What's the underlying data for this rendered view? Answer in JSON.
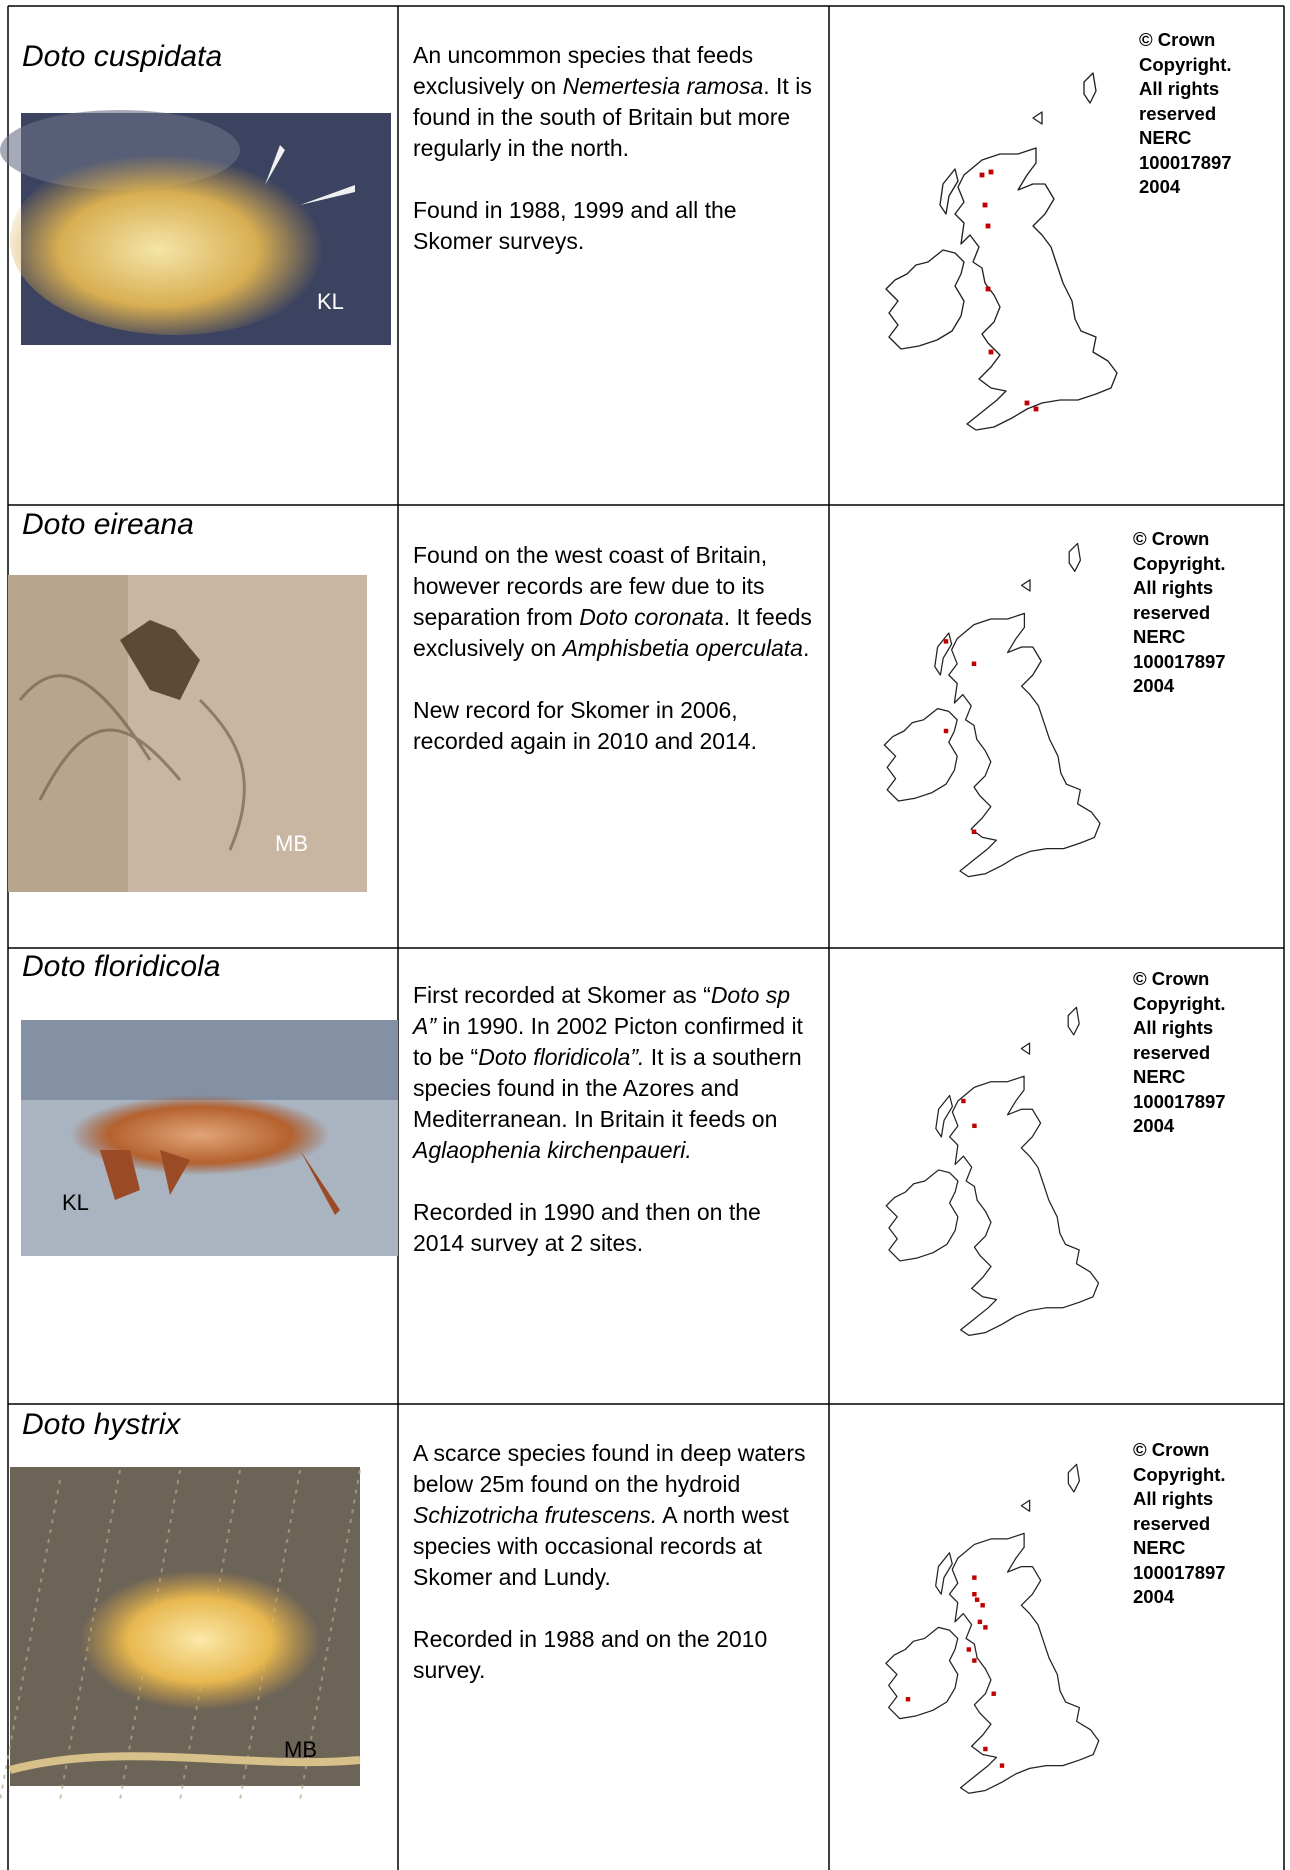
{
  "rows": [
    {
      "species": "Doto cuspidata",
      "photo_credit": "KL",
      "description": [
        [
          {
            "text": "An uncommon species that feeds exclusively on ",
            "italic": false
          },
          {
            "text": "Nemertesia ramosa",
            "italic": true
          },
          {
            "text": ".  It is found in the south of Britain but more regularly in the north.",
            "italic": false
          }
        ],
        [
          {
            "text": "Found in 1988, 1999 and all the Skomer surveys.",
            "italic": false
          }
        ]
      ],
      "copyright": [
        "© Crown",
        "Copyright.",
        "All rights",
        "reserved",
        "NERC",
        "100017897",
        "2004"
      ]
    },
    {
      "species": "Doto eireana",
      "photo_credit": "MB",
      "description": [
        [
          {
            "text": "Found on the west coast of Britain, however records are few due to its separation from ",
            "italic": false
          },
          {
            "text": "Doto coronata",
            "italic": true
          },
          {
            "text": ".  It feeds exclusively on ",
            "italic": false
          },
          {
            "text": "Amphisbetia operculata",
            "italic": true
          },
          {
            "text": ".",
            "italic": false
          }
        ],
        [
          {
            "text": "New record for Skomer in 2006, recorded again in 2010 and 2014.",
            "italic": false
          }
        ]
      ],
      "copyright": [
        "© Crown",
        "Copyright.",
        "All rights",
        "reserved",
        "NERC",
        "100017897",
        "2004"
      ]
    },
    {
      "species": "Doto floridicola",
      "photo_credit": "KL",
      "description": [
        [
          {
            "text": "First recorded at Skomer as “",
            "italic": false
          },
          {
            "text": "Doto sp A”",
            "italic": true
          },
          {
            "text": " in 1990.   In 2002 Picton confirmed it to be “",
            "italic": false
          },
          {
            "text": "Doto floridicola”.",
            "italic": true
          },
          {
            "text": "  It is a southern species found in the Azores and Mediterranean. In Britain it feeds on ",
            "italic": false
          },
          {
            "text": "Aglaophenia kirchenpaueri.",
            "italic": true
          }
        ],
        [
          {
            "text": "Recorded in 1990 and then on the 2014 survey at 2 sites.",
            "italic": false
          }
        ]
      ],
      "copyright": [
        "© Crown",
        "Copyright.",
        "All rights",
        "reserved",
        "NERC",
        "100017897",
        "2004"
      ]
    },
    {
      "species": "Doto hystrix",
      "photo_credit": "MB",
      "description": [
        [
          {
            "text": "A scarce species found in deep waters below 25m found on the hydroid ",
            "italic": false
          },
          {
            "text": "Schizotricha frutescens.",
            "italic": true
          },
          {
            "text": " A north west species with occasional records at Skomer and Lundy.",
            "italic": false
          }
        ],
        [
          {
            "text": "Recorded in 1988 and on the 2010 survey.",
            "italic": false
          }
        ]
      ],
      "copyright": [
        "© Crown",
        "Copyright.",
        "All rights",
        "reserved",
        "NERC",
        "100017897",
        "2004"
      ]
    }
  ]
}
